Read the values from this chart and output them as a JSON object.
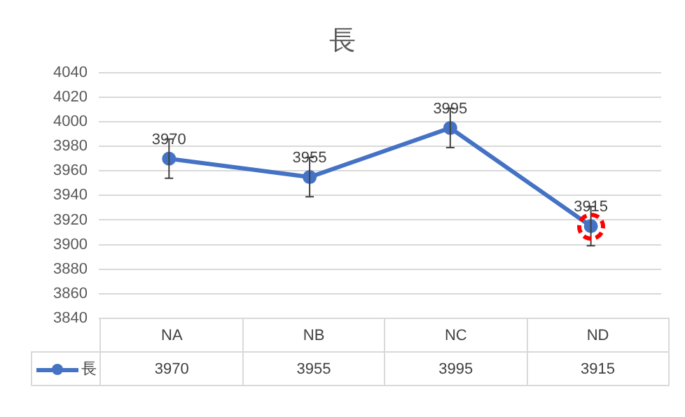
{
  "chart_data": {
    "type": "line",
    "title": "長",
    "categories": [
      "NA",
      "NB",
      "NC",
      "ND"
    ],
    "series": [
      {
        "name": "長",
        "color": "#4472c4",
        "values": [
          3970,
          3955,
          3995,
          3915
        ],
        "errors": [
          16,
          16,
          16,
          16
        ],
        "value_labels": [
          "3970",
          "3955",
          "3995",
          "3915"
        ]
      }
    ],
    "ylim": [
      3840,
      4040
    ],
    "yticks": [
      3840,
      3860,
      3880,
      3900,
      3920,
      3940,
      3960,
      3980,
      4000,
      4020,
      4040
    ],
    "grid": "y",
    "legend": "bottom",
    "marker": "circle",
    "line_style": "solid",
    "annotations": [
      {
        "text": "3970",
        "x": "NA",
        "y": 3970
      },
      {
        "text": "3955",
        "x": "NB",
        "y": 3955
      },
      {
        "text": "3995",
        "x": "NC",
        "y": 3995
      },
      {
        "text": "3915",
        "x": "ND",
        "y": 3915
      }
    ]
  }
}
